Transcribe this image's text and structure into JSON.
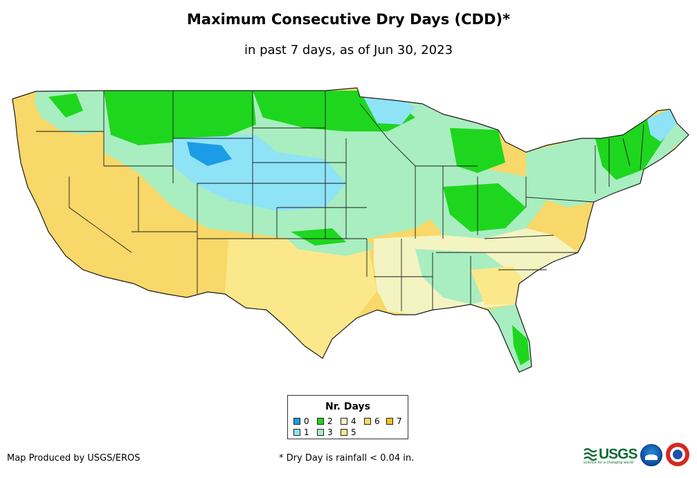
{
  "title": "Maximum Consecutive Dry Days (CDD)*",
  "subtitle": "in past 7 days, as of Jun 30, 2023",
  "legend": {
    "title": "Nr. Days",
    "items": [
      {
        "label": "0",
        "color": "#1a9de6"
      },
      {
        "label": "1",
        "color": "#8fe3f7"
      },
      {
        "label": "2",
        "color": "#1ed61e"
      },
      {
        "label": "3",
        "color": "#a8eec0"
      },
      {
        "label": "4",
        "color": "#f4f4c2"
      },
      {
        "label": "5",
        "color": "#fbe88a"
      },
      {
        "label": "6",
        "color": "#f7d868"
      },
      {
        "label": "7",
        "color": "#f6c21e"
      }
    ]
  },
  "map": {
    "region": "Contiguous United States",
    "boundary_color": "#1a1a1a",
    "background_color": "#ffffff"
  },
  "credit": "Map Produced by USGS/EROS",
  "footnote": "* Dry Day is rainfall < 0.04 in.",
  "logos": {
    "usgs": {
      "text": "USGS",
      "tagline": "science for a changing world",
      "color": "#116a36"
    },
    "noaa": {
      "name": "noaa-logo"
    },
    "nws": {
      "name": "nws-logo"
    }
  }
}
